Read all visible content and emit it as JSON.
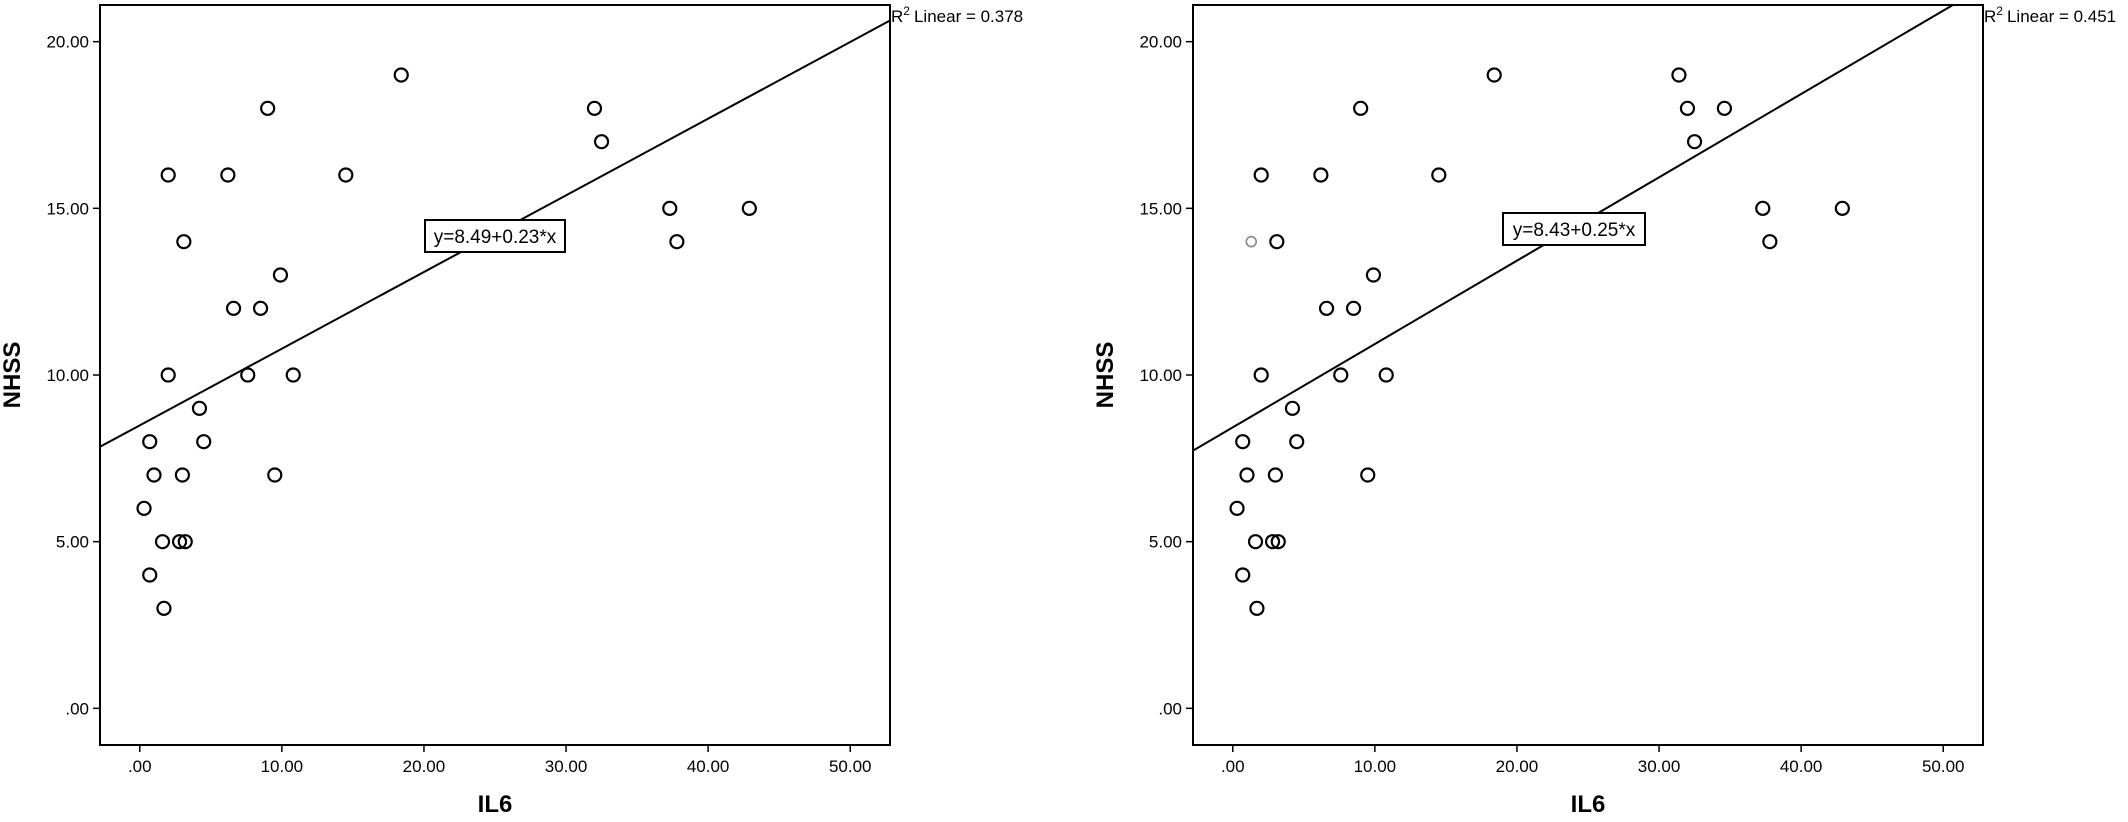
{
  "chart_data": [
    {
      "type": "scatter",
      "xlabel": "IL6",
      "ylabel": "NHSS",
      "xlim": [
        -2.8,
        52.8
      ],
      "ylim": [
        -1.1,
        21.1
      ],
      "x_ticks": [
        ".00",
        "10.00",
        "20.00",
        "30.00",
        "40.00",
        "50.00"
      ],
      "y_ticks": [
        ".00",
        "5.00",
        "10.00",
        "15.00",
        "20.00"
      ],
      "r2_label": "Linear = 0.378",
      "r2_prefix": "R",
      "r2_sup": "2",
      "equation": "y=8.49+0.23*x",
      "fit": {
        "intercept": 8.49,
        "slope": 0.23
      },
      "points": [
        [
          0.3,
          6
        ],
        [
          0.7,
          4
        ],
        [
          0.7,
          8
        ],
        [
          1.0,
          7
        ],
        [
          1.6,
          5
        ],
        [
          1.7,
          3
        ],
        [
          2.0,
          10
        ],
        [
          2.0,
          16
        ],
        [
          2.8,
          5
        ],
        [
          3.0,
          7
        ],
        [
          3.1,
          14
        ],
        [
          3.2,
          5
        ],
        [
          4.2,
          9
        ],
        [
          4.5,
          8
        ],
        [
          6.2,
          16
        ],
        [
          6.6,
          12
        ],
        [
          7.6,
          10
        ],
        [
          8.5,
          12
        ],
        [
          9.0,
          18
        ],
        [
          9.5,
          7
        ],
        [
          9.9,
          13
        ],
        [
          10.8,
          10
        ],
        [
          14.5,
          16
        ],
        [
          18.4,
          19
        ],
        [
          32.0,
          18
        ],
        [
          32.5,
          17
        ],
        [
          37.3,
          15
        ],
        [
          37.8,
          14
        ],
        [
          42.9,
          15
        ]
      ]
    },
    {
      "type": "scatter",
      "xlabel": "IL6",
      "ylabel": "NHSS",
      "xlim": [
        -2.8,
        52.8
      ],
      "ylim": [
        -1.1,
        21.1
      ],
      "x_ticks": [
        ".00",
        "10.00",
        "20.00",
        "30.00",
        "40.00",
        "50.00"
      ],
      "y_ticks": [
        ".00",
        "5.00",
        "10.00",
        "15.00",
        "20.00"
      ],
      "r2_label": "Linear = 0.451",
      "r2_prefix": "R",
      "r2_sup": "2",
      "equation": "y=8.43+0.25*x",
      "fit": {
        "intercept": 8.43,
        "slope": 0.25
      },
      "points": [
        [
          0.3,
          6
        ],
        [
          0.7,
          4
        ],
        [
          0.7,
          8
        ],
        [
          1.0,
          7
        ],
        [
          1.6,
          5
        ],
        [
          1.7,
          3
        ],
        [
          2.0,
          10
        ],
        [
          2.0,
          16
        ],
        [
          2.8,
          5
        ],
        [
          3.0,
          7
        ],
        [
          3.1,
          14
        ],
        [
          3.2,
          5
        ],
        [
          4.2,
          9
        ],
        [
          4.5,
          8
        ],
        [
          6.2,
          16
        ],
        [
          6.6,
          12
        ],
        [
          7.6,
          10
        ],
        [
          8.5,
          12
        ],
        [
          9.0,
          18
        ],
        [
          9.5,
          7
        ],
        [
          9.9,
          13
        ],
        [
          10.8,
          10
        ],
        [
          14.5,
          16
        ],
        [
          18.4,
          19
        ],
        [
          31.4,
          19
        ],
        [
          32.0,
          18
        ],
        [
          32.5,
          17
        ],
        [
          34.6,
          18
        ],
        [
          37.3,
          15
        ],
        [
          37.8,
          14
        ],
        [
          42.9,
          15
        ]
      ],
      "faint_points": [
        [
          1.3,
          14
        ]
      ]
    }
  ]
}
